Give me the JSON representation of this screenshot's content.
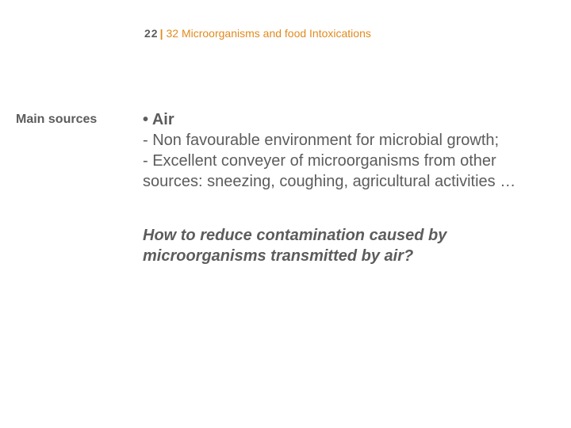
{
  "header": {
    "page_number": "22",
    "chapter": "32 Microorganisms and food Intoxications"
  },
  "sidebar": {
    "label": "Main sources"
  },
  "content": {
    "bullet_prefix": "• ",
    "bullet_title": "Air",
    "line1": "- Non favourable environment for microbial growth;",
    "line2": "- Excellent conveyer of microorganisms from other sources: sneezing, coughing, agricultural activities …",
    "question": "How to reduce contamination caused by microorganisms transmitted by air?"
  },
  "colors": {
    "accent": "#e18a1e",
    "text": "#5c5c5c",
    "background": "#ffffff"
  }
}
